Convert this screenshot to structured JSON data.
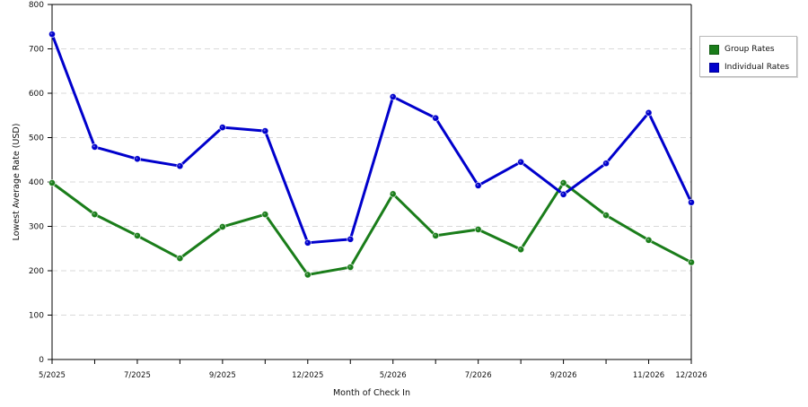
{
  "chart_data": {
    "type": "line",
    "xlabel": "Month of Check In",
    "ylabel": "Lowest Average Rate (USD)",
    "ylim": [
      0,
      800
    ],
    "y_ticks": [
      0,
      100,
      200,
      300,
      400,
      500,
      600,
      700,
      800
    ],
    "grid": true,
    "legend_position": "top-right",
    "x_tick_labels": [
      "5/2025",
      "7/2025",
      "9/2025",
      "12/2025",
      "5/2026",
      "7/2026",
      "9/2026",
      "11/2026",
      "12/2026"
    ],
    "series": [
      {
        "name": "Group Rates",
        "color": "#1a7d1a",
        "values": [
          398,
          327,
          279,
          228,
          299,
          327,
          191,
          208,
          373,
          279,
          293,
          248,
          398,
          325,
          269,
          219
        ]
      },
      {
        "name": "Individual Rates",
        "color": "#0000cc",
        "values": [
          733,
          479,
          452,
          436,
          523,
          515,
          263,
          271,
          592,
          544,
          392,
          445,
          372,
          442,
          556,
          354
        ]
      }
    ]
  }
}
